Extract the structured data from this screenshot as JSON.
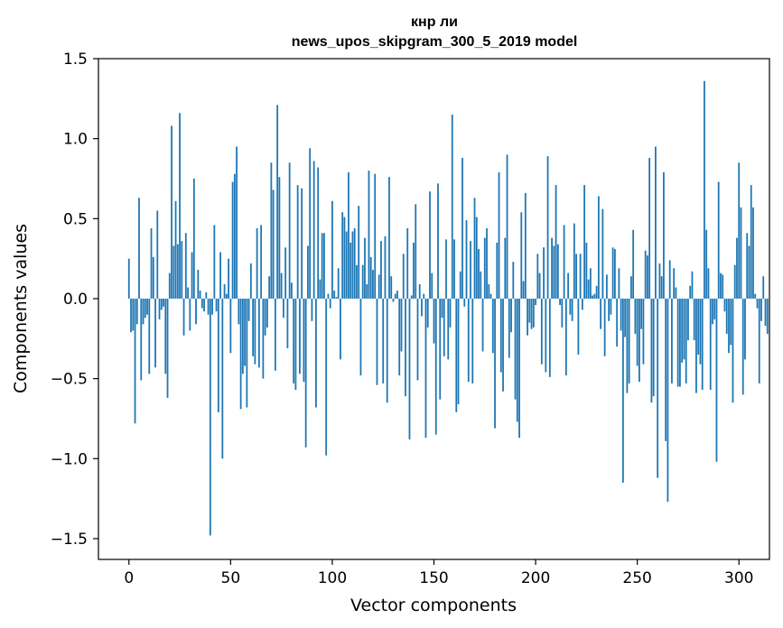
{
  "chart_data": {
    "type": "bar",
    "title_line1": "кнр ли",
    "title_line2": "news_upos_skipgram_300_5_2019 model",
    "xlabel": "Vector components",
    "ylabel": "Components values",
    "xlim": [
      -15,
      315
    ],
    "ylim": [
      -1.63,
      1.5
    ],
    "xticks": [
      0,
      50,
      100,
      150,
      200,
      250,
      300
    ],
    "xtick_labels": [
      "0",
      "50",
      "100",
      "150",
      "200",
      "250",
      "300"
    ],
    "yticks": [
      1.5,
      1.0,
      0.5,
      0.0,
      -0.5,
      -1.0,
      -1.5
    ],
    "ytick_labels": [
      "1.5",
      "1.0",
      "0.5",
      "0.0",
      "−0.5",
      "−1.0",
      "−1.5"
    ],
    "bar_color": "#1f77b4",
    "values": [
      0.25,
      -0.21,
      -0.2,
      -0.78,
      -0.16,
      0.63,
      -0.51,
      -0.16,
      -0.12,
      -0.1,
      -0.47,
      0.44,
      0.26,
      -0.43,
      0.55,
      -0.13,
      -0.07,
      -0.05,
      -0.47,
      -0.62,
      0.16,
      1.08,
      0.33,
      0.61,
      0.34,
      1.16,
      0.36,
      -0.23,
      0.41,
      0.07,
      -0.2,
      0.29,
      0.75,
      -0.16,
      0.18,
      0.05,
      -0.06,
      -0.08,
      0.04,
      -0.1,
      -1.48,
      -0.1,
      0.46,
      -0.08,
      -0.71,
      0.29,
      -1.0,
      0.09,
      0.03,
      0.25,
      -0.34,
      0.73,
      0.78,
      0.95,
      -0.16,
      -0.69,
      -0.47,
      -0.42,
      -0.68,
      -0.14,
      0.22,
      -0.36,
      -0.41,
      0.44,
      -0.43,
      0.46,
      -0.5,
      -0.23,
      -0.18,
      0.14,
      0.85,
      0.68,
      -0.45,
      1.21,
      0.76,
      0.16,
      -0.12,
      0.32,
      -0.31,
      0.85,
      0.1,
      -0.53,
      -0.57,
      0.71,
      -0.47,
      0.69,
      -0.52,
      -0.93,
      0.33,
      0.94,
      -0.14,
      0.86,
      -0.68,
      0.82,
      0.12,
      0.41,
      0.41,
      -0.98,
      0.03,
      -0.06,
      0.61,
      0.05,
      0.01,
      0.19,
      -0.38,
      0.54,
      0.51,
      0.42,
      0.79,
      0.35,
      0.42,
      0.44,
      0.21,
      0.58,
      -0.48,
      0.21,
      0.38,
      0.09,
      0.8,
      0.26,
      0.18,
      0.78,
      -0.54,
      0.15,
      0.36,
      -0.53,
      0.39,
      -0.65,
      0.76,
      0.14,
      -0.02,
      0.03,
      0.05,
      -0.48,
      -0.33,
      0.28,
      -0.61,
      0.44,
      -0.88,
      0.02,
      0.35,
      0.59,
      -0.51,
      0.09,
      -0.11,
      0.03,
      -0.87,
      -0.18,
      0.67,
      0.16,
      -0.28,
      -0.85,
      0.72,
      -0.63,
      -0.12,
      -0.36,
      0.37,
      -0.38,
      -0.18,
      1.15,
      0.37,
      -0.71,
      -0.66,
      0.17,
      0.88,
      -0.05,
      0.49,
      -0.52,
      0.36,
      -0.53,
      0.63,
      0.51,
      0.31,
      0.17,
      -0.33,
      0.38,
      0.44,
      0.09,
      0.03,
      -0.34,
      -0.81,
      0.35,
      0.79,
      -0.46,
      -0.58,
      0.38,
      0.9,
      -0.37,
      -0.21,
      0.23,
      -0.63,
      -0.77,
      -0.87,
      0.54,
      0.11,
      0.66,
      -0.23,
      -0.15,
      -0.19,
      -0.18,
      -0.04,
      0.28,
      0.16,
      -0.41,
      0.32,
      -0.46,
      0.89,
      -0.49,
      0.38,
      0.33,
      0.71,
      0.34,
      -0.04,
      -0.18,
      0.46,
      -0.48,
      0.16,
      -0.1,
      -0.14,
      0.47,
      0.28,
      -0.35,
      0.28,
      -0.07,
      0.71,
      0.35,
      0.12,
      0.19,
      0.02,
      0.03,
      0.08,
      0.64,
      -0.19,
      0.56,
      -0.36,
      0.15,
      -0.14,
      -0.1,
      0.32,
      0.31,
      -0.3,
      0.19,
      -0.2,
      -1.15,
      -0.24,
      -0.59,
      -0.53,
      0.14,
      0.43,
      -0.22,
      -0.42,
      -0.52,
      -0.19,
      -0.41,
      0.3,
      0.27,
      0.88,
      -0.65,
      -0.61,
      0.95,
      -1.12,
      0.22,
      0.14,
      0.79,
      -0.89,
      -1.27,
      0.24,
      -0.53,
      0.19,
      0.07,
      -0.55,
      -0.55,
      -0.4,
      -0.38,
      -0.53,
      -0.26,
      0.08,
      0.17,
      -0.26,
      -0.59,
      -0.35,
      -0.41,
      -0.57,
      1.36,
      0.43,
      0.19,
      -0.57,
      -0.16,
      -0.13,
      -1.02,
      0.73,
      0.16,
      0.15,
      -0.08,
      -0.22,
      -0.34,
      -0.29,
      -0.65,
      0.21,
      0.38,
      0.85,
      0.57,
      -0.6,
      -0.38,
      0.41,
      0.33,
      0.71,
      0.57,
      0.03,
      -0.06,
      -0.53,
      -0.14,
      0.14,
      -0.17,
      -0.22
    ]
  }
}
